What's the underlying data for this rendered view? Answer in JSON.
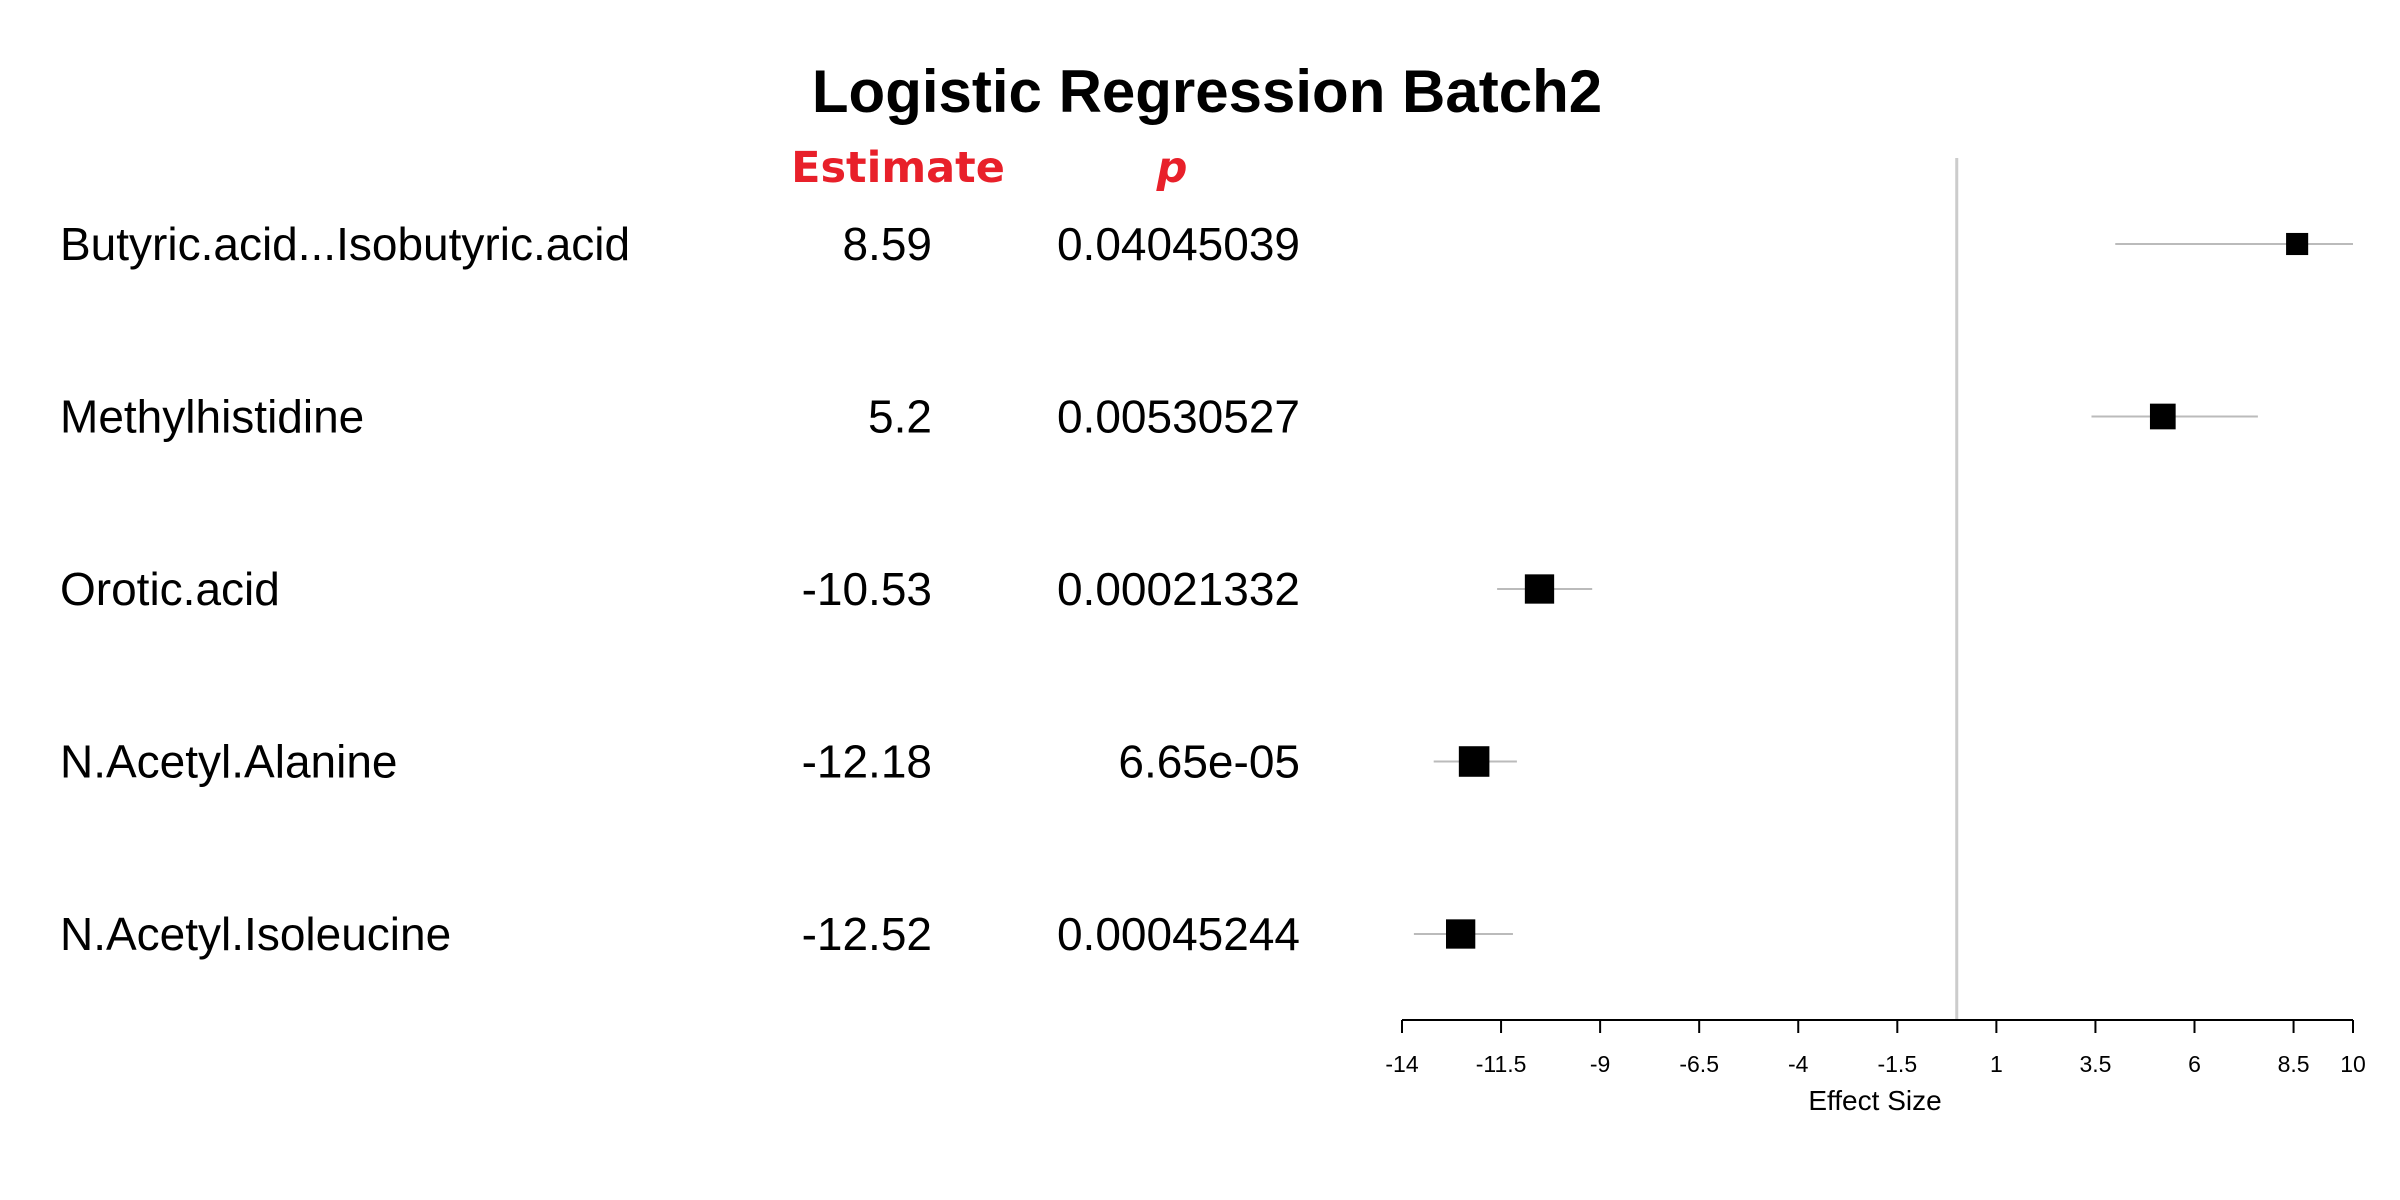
{
  "chart_data": {
    "type": "forest",
    "title": "Logistic Regression Batch2",
    "columns": {
      "estimate_header": "Estimate",
      "p_header": "p"
    },
    "header_color": "#e8202a",
    "rows": [
      {
        "label": "Butyric.acid...Isobutyric.acid",
        "estimate_text": "8.59",
        "p_text": "0.04045039",
        "estimate": 8.59,
        "ci": [
          4.0,
          10.0
        ],
        "weight": 0.45
      },
      {
        "label": "Methylhistidine",
        "estimate_text": "5.2",
        "p_text": "0.00530527",
        "estimate": 5.2,
        "ci": [
          3.4,
          7.6
        ],
        "weight": 0.65
      },
      {
        "label": "Orotic.acid",
        "estimate_text": "-10.53",
        "p_text": "0.00021332",
        "estimate": -10.53,
        "ci": [
          -11.6,
          -9.2
        ],
        "weight": 0.85
      },
      {
        "label": "N.Acetyl.Alanine",
        "estimate_text": "-12.18",
        "p_text": "6.65e-05",
        "estimate": -12.18,
        "ci": [
          -13.2,
          -11.1
        ],
        "weight": 0.92
      },
      {
        "label": "N.Acetyl.Isoleucine",
        "estimate_text": "-12.52",
        "p_text": "0.00045244",
        "estimate": -12.52,
        "ci": [
          -13.7,
          -11.2
        ],
        "weight": 0.85
      }
    ],
    "x_axis": {
      "label": "Effect Size",
      "range": [
        -14,
        10
      ],
      "ticks": [
        -14,
        -11.5,
        -9,
        -6.5,
        -4,
        -1.5,
        1,
        3.5,
        6,
        8.5,
        10
      ],
      "tick_labels": [
        "-14",
        "-11.5",
        "-9",
        "-6.5",
        "-4",
        "-1.5",
        "1",
        "3.5",
        "6",
        "8.5",
        "10"
      ]
    },
    "reference_line": 0,
    "grid": false,
    "colors": {
      "marker": "#000000",
      "ci_line": "#bbbbbb",
      "reference_line": "#cccccc"
    }
  }
}
